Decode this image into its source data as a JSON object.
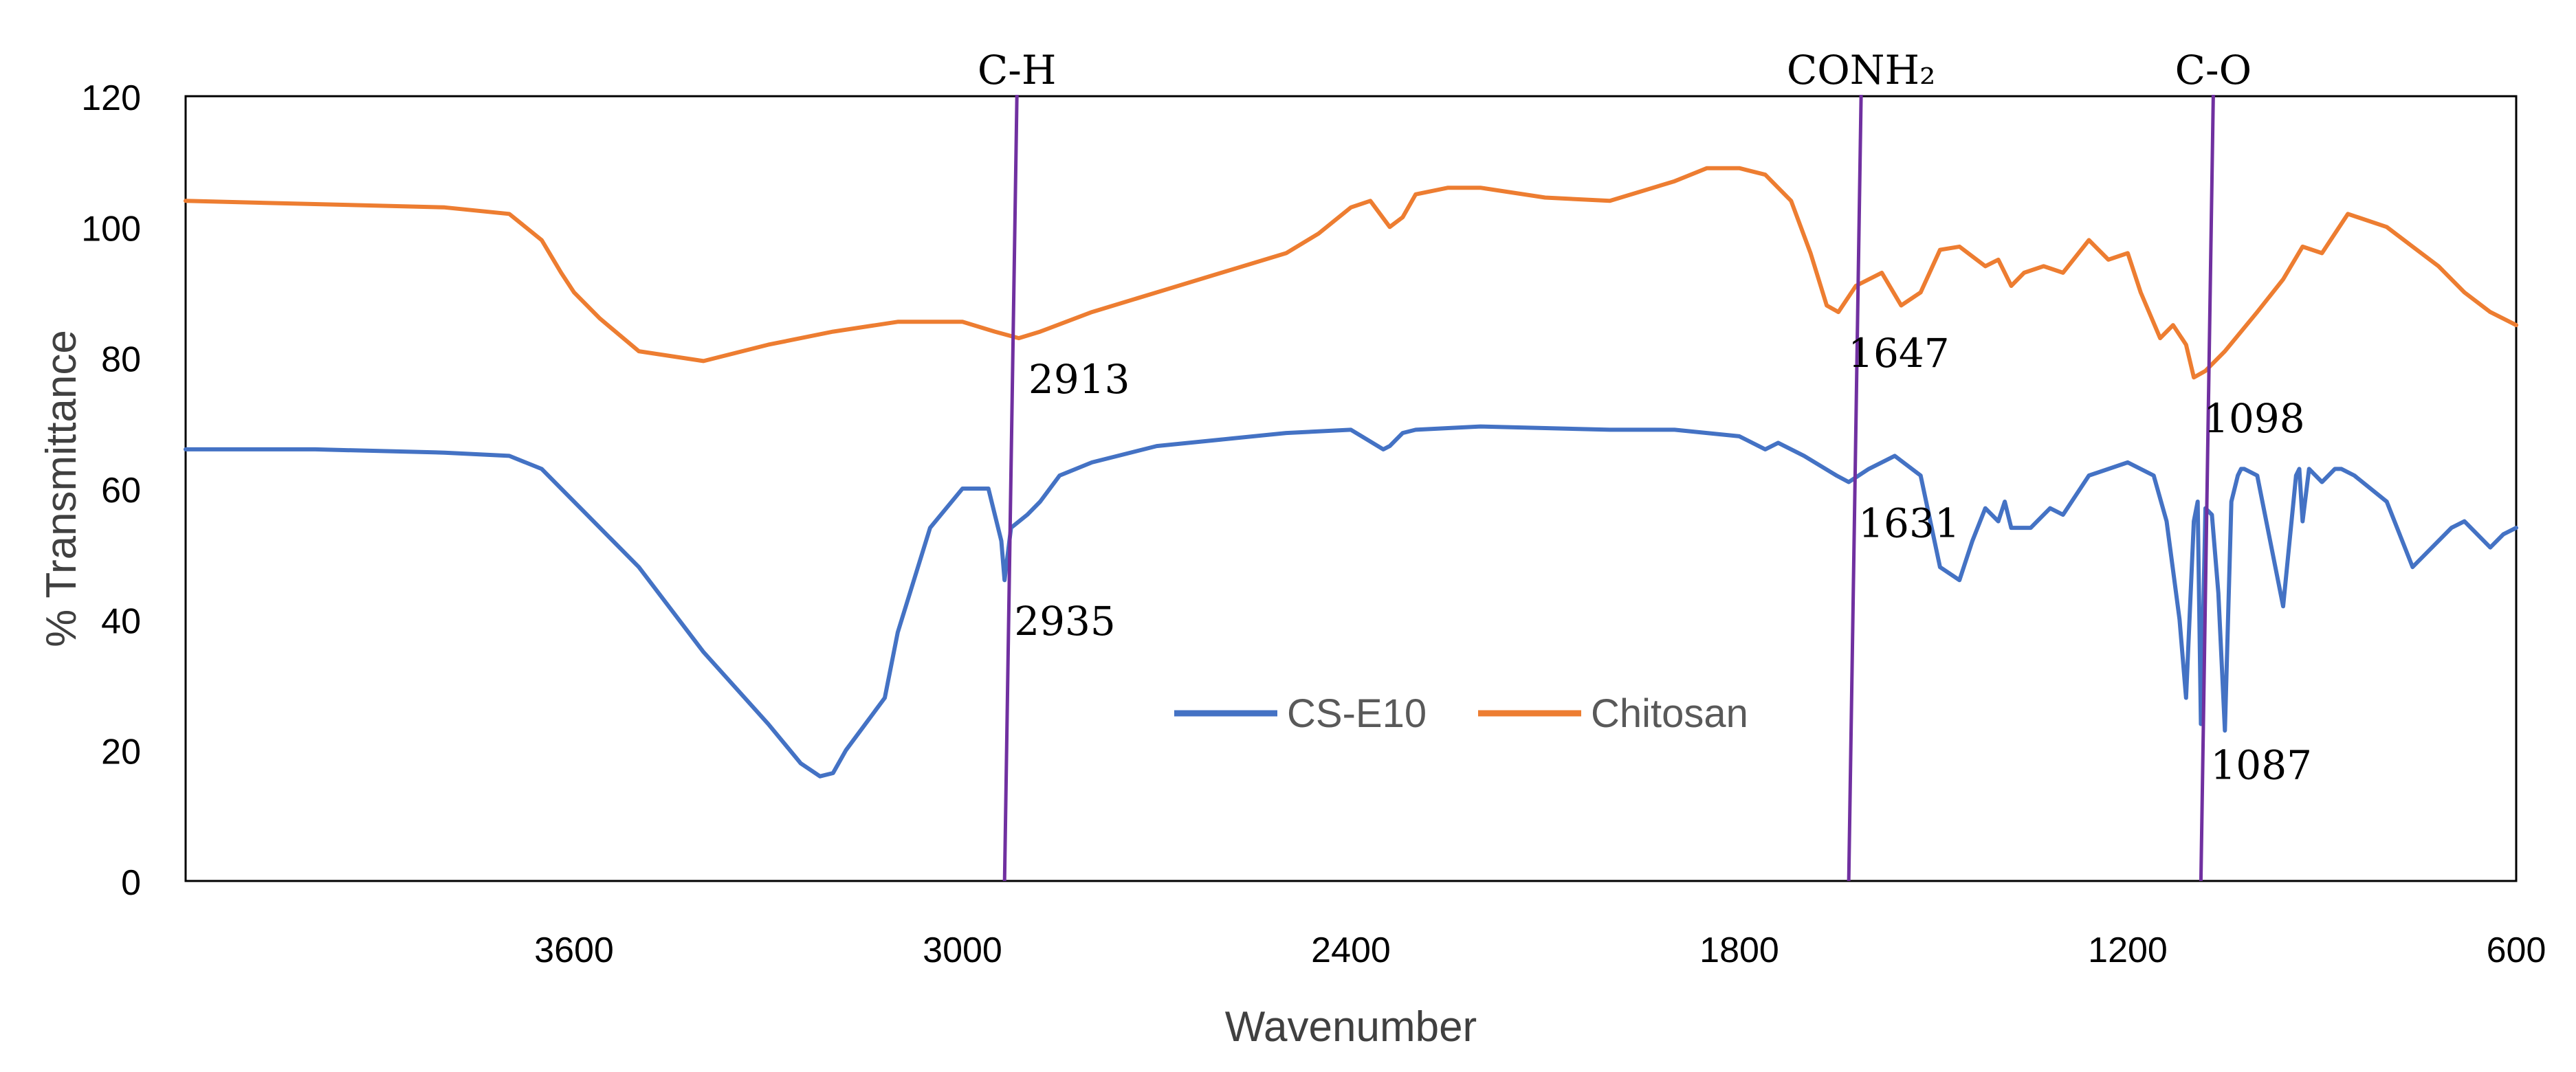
{
  "chart_data": {
    "type": "line",
    "title": "",
    "xlabel": "Wavenumber",
    "ylabel": "% Transmittance",
    "xlim": [
      4200,
      600
    ],
    "ylim": [
      0,
      120
    ],
    "x_ticks": [
      3600,
      3000,
      2400,
      1800,
      1200,
      600
    ],
    "y_ticks": [
      0,
      20,
      40,
      60,
      80,
      100,
      120
    ],
    "grid": false,
    "legend": {
      "position": "center",
      "entries": [
        "CS-E10",
        "Chitosan"
      ]
    },
    "series": [
      {
        "name": "CS-E10",
        "color": "#4472C4",
        "x": [
          4200,
          4000,
          3800,
          3700,
          3650,
          3600,
          3500,
          3400,
          3300,
          3250,
          3220,
          3200,
          3180,
          3150,
          3120,
          3100,
          3050,
          3000,
          2960,
          2950,
          2940,
          2935,
          2925,
          2900,
          2880,
          2850,
          2800,
          2700,
          2600,
          2500,
          2400,
          2350,
          2340,
          2320,
          2300,
          2200,
          2000,
          1900,
          1800,
          1760,
          1740,
          1700,
          1650,
          1631,
          1600,
          1560,
          1520,
          1490,
          1460,
          1440,
          1420,
          1400,
          1390,
          1380,
          1350,
          1320,
          1300,
          1260,
          1200,
          1160,
          1140,
          1120,
          1110,
          1098,
          1092,
          1087,
          1080,
          1070,
          1060,
          1050,
          1040,
          1030,
          1025,
          1020,
          1000,
          960,
          940,
          935,
          930,
          920,
          900,
          880,
          870,
          850,
          800,
          760,
          700,
          680,
          640,
          620,
          600
        ],
        "values": [
          66,
          66,
          65.5,
          65,
          63,
          58,
          48,
          35,
          24,
          18,
          16,
          16.5,
          20,
          24,
          28,
          38,
          54,
          60,
          60,
          56,
          52,
          46,
          54,
          56,
          58,
          62,
          64,
          66.5,
          67.5,
          68.5,
          69,
          66,
          66.5,
          68.5,
          69,
          69.5,
          69,
          69,
          68,
          66,
          67,
          65,
          62,
          61,
          63,
          65,
          62,
          48,
          46,
          52,
          57,
          55,
          58,
          54,
          54,
          57,
          56,
          62,
          64,
          62,
          55,
          40,
          28,
          55,
          58,
          24,
          57,
          56,
          44,
          23,
          58,
          62,
          63,
          63,
          62,
          42,
          62,
          63,
          55,
          63,
          61,
          63,
          63,
          62,
          58,
          48,
          54,
          55,
          51,
          53,
          54
        ]
      },
      {
        "name": "Chitosan",
        "color": "#ED7D31",
        "x": [
          4200,
          4000,
          3800,
          3700,
          3650,
          3620,
          3600,
          3560,
          3500,
          3400,
          3300,
          3200,
          3100,
          3000,
          2950,
          2913,
          2880,
          2800,
          2700,
          2600,
          2500,
          2450,
          2400,
          2370,
          2340,
          2320,
          2300,
          2250,
          2200,
          2100,
          2000,
          1900,
          1850,
          1800,
          1760,
          1720,
          1690,
          1665,
          1647,
          1620,
          1580,
          1550,
          1520,
          1490,
          1460,
          1420,
          1400,
          1380,
          1360,
          1330,
          1300,
          1260,
          1230,
          1200,
          1180,
          1150,
          1130,
          1110,
          1098,
          1080,
          1050,
          1000,
          960,
          930,
          900,
          860,
          800,
          760,
          720,
          680,
          640,
          600
        ],
        "values": [
          104,
          103.5,
          103,
          102,
          98,
          93,
          90,
          86,
          81,
          79.5,
          82,
          84,
          85.5,
          85.5,
          84,
          83,
          84,
          87,
          90,
          93,
          96,
          99,
          103,
          104,
          100,
          101.5,
          105,
          106,
          106,
          104.5,
          104,
          107,
          109,
          109,
          108,
          104,
          96,
          88,
          87,
          91,
          93,
          88,
          90,
          96.5,
          97,
          94,
          95,
          91,
          93,
          94,
          93,
          98,
          95,
          96,
          90,
          83,
          85,
          82,
          77,
          78,
          81,
          87,
          92,
          97,
          96,
          102,
          100,
          97,
          94,
          90,
          87,
          85
        ]
      }
    ],
    "annotations": [
      {
        "label": "C-H",
        "x": 2935
      },
      {
        "label": "CONH₂",
        "x": 1631
      },
      {
        "label": "C-O",
        "x": 1087
      }
    ],
    "point_labels": [
      {
        "text": "2913",
        "x": 2913,
        "y": 83
      },
      {
        "text": "2935",
        "x": 2935,
        "y": 46
      },
      {
        "text": "1647",
        "x": 1647,
        "y": 87
      },
      {
        "text": "1631",
        "x": 1631,
        "y": 61
      },
      {
        "text": "1098",
        "x": 1098,
        "y": 77
      },
      {
        "text": "1087",
        "x": 1087,
        "y": 24
      }
    ],
    "guide_color": "#7030A0"
  }
}
